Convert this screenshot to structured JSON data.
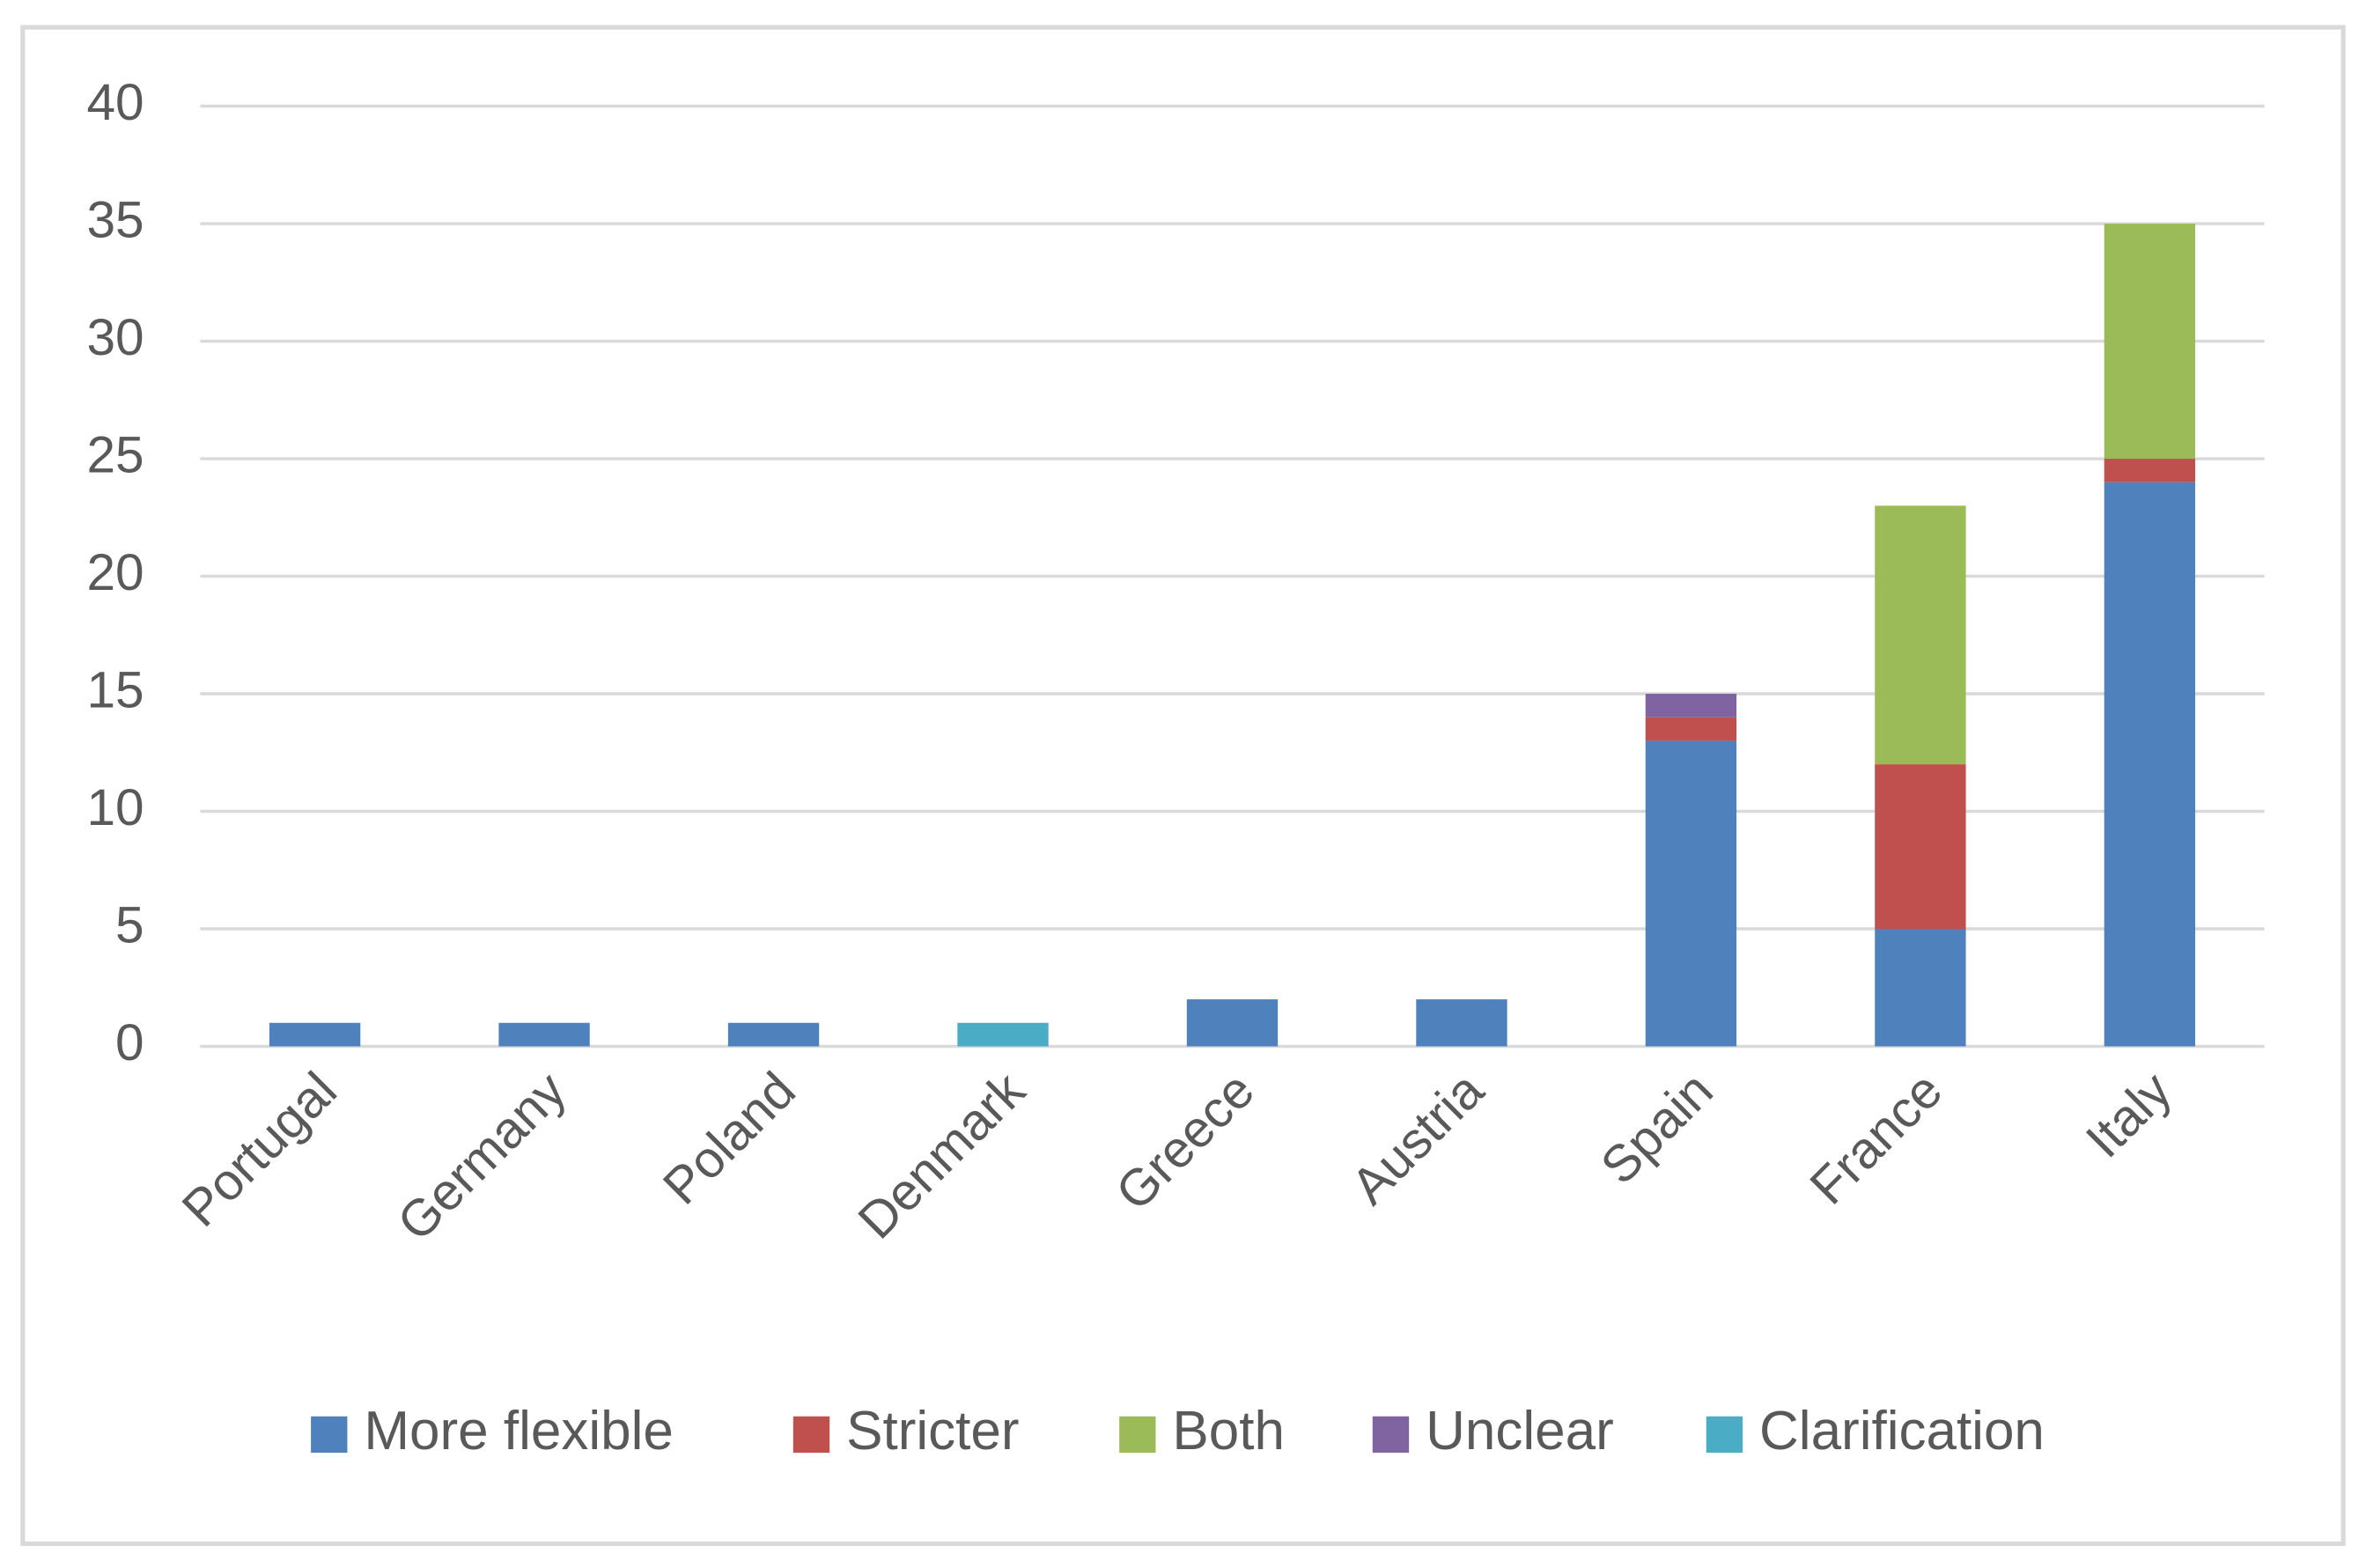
{
  "chart_data": {
    "type": "stacked_bar",
    "categories": [
      "Portugal",
      "Germany",
      "Poland",
      "Denmark",
      "Greece",
      "Austria",
      "Spain",
      "France",
      "Italy"
    ],
    "series": [
      {
        "name": "More flexible",
        "color": "#4f81bd",
        "values": [
          1,
          1,
          1,
          0,
          2,
          2,
          13,
          5,
          24
        ]
      },
      {
        "name": "Stricter",
        "color": "#c0504d",
        "values": [
          0,
          0,
          0,
          0,
          0,
          0,
          1,
          7,
          1
        ]
      },
      {
        "name": "Both",
        "color": "#9bbb59",
        "values": [
          0,
          0,
          0,
          0,
          0,
          0,
          0,
          11,
          10
        ]
      },
      {
        "name": "Unclear",
        "color": "#8064a2",
        "values": [
          0,
          0,
          0,
          0,
          0,
          0,
          1,
          0,
          0
        ]
      },
      {
        "name": "Clarification",
        "color": "#4bacc6",
        "values": [
          0,
          0,
          0,
          1,
          0,
          0,
          0,
          0,
          0
        ]
      }
    ],
    "ylim": [
      0,
      40
    ],
    "yticks": [
      0,
      5,
      10,
      15,
      20,
      25,
      30,
      35,
      40
    ],
    "grid": true,
    "legend": "bottom"
  }
}
